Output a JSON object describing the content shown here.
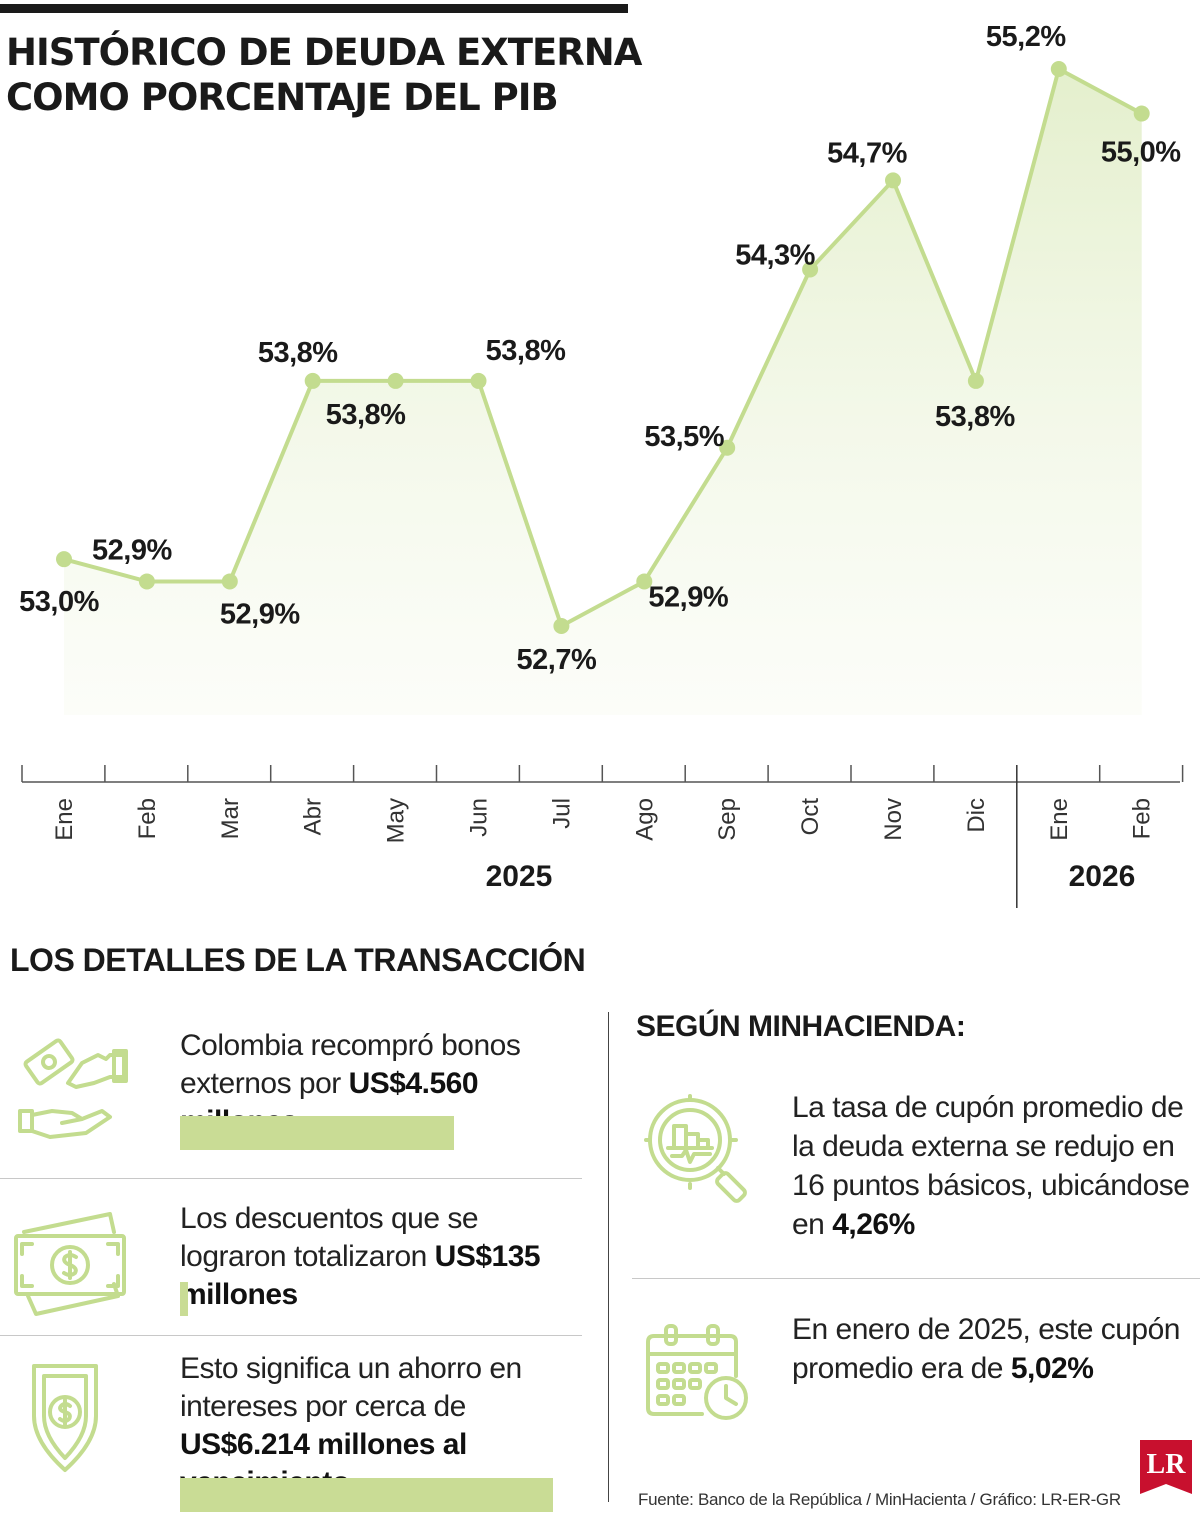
{
  "title": {
    "line1": "HISTÓRICO DE DEUDA EXTERNA",
    "line2": "COMO PORCENTAJE DEL PIB"
  },
  "chart_data": {
    "type": "line",
    "categories": [
      "Ene",
      "Feb",
      "Mar",
      "Abr",
      "May",
      "Jun",
      "Jul",
      "Ago",
      "Sep",
      "Oct",
      "Nov",
      "Dic",
      "Ene",
      "Feb"
    ],
    "years": [
      {
        "label": "2025",
        "from": 0,
        "to": 11
      },
      {
        "label": "2026",
        "from": 12,
        "to": 13
      }
    ],
    "values": [
      53.0,
      52.9,
      52.9,
      53.8,
      53.8,
      53.8,
      52.7,
      52.9,
      53.5,
      54.3,
      54.7,
      53.8,
      55.2,
      55.0
    ],
    "labels": [
      "53,0%",
      "52,9%",
      "52,9%",
      "53,8%",
      "53,8%",
      "53,8%",
      "52,7%",
      "52,9%",
      "53,5%",
      "54,3%",
      "54,7%",
      "53,8%",
      "55,2%",
      "55,0%"
    ],
    "title": "HISTÓRICO DE DEUDA EXTERNA COMO PORCENTAJE DEL PIB",
    "unit": "%",
    "line_color": "#c3dc8f",
    "fill_color": "#f2f7e6"
  },
  "details": {
    "title": "LOS DETALLES DE LA TRANSACCIÓN",
    "items": [
      {
        "text": "Colombia recompró bonos externos por ",
        "bold": "US$4.560 millones",
        "tail": "",
        "icon": "money-hands-icon",
        "bar_fraction": 0.6088
      },
      {
        "text": "Los descuentos que se lograron totalizaron ",
        "bold": "US$135 millones",
        "tail": "",
        "icon": "banknotes-icon",
        "bar_fraction": 0.018
      },
      {
        "text": "Esto significa un ahorro en intereses por cerca de ",
        "bold": "US$6.214 millones al vencimiento",
        "tail": "",
        "icon": "dollar-shield-icon",
        "bar_fraction": 0.8296
      }
    ]
  },
  "minhacienda": {
    "heading": "SEGÚN MINHACIENDA:",
    "items": [
      {
        "text": "La tasa de cupón promedio de la deuda externa se redujo en 16 puntos básicos, ubicándose en ",
        "bold": "4,26%",
        "icon": "magnifier-chart-icon"
      },
      {
        "text": "En enero de 2025, este cupón promedio era de ",
        "bold": "5,02%",
        "icon": "calendar-clock-icon"
      }
    ]
  },
  "source": "Fuente: Banco de la República / MinHacienta / Gráfico: LR-ER-GR",
  "logo": "LR",
  "colors": {
    "accent": "#c3dc8f",
    "bar": "#c9dc95",
    "logo_red": "#c8102e",
    "text": "#1a1a1a"
  }
}
